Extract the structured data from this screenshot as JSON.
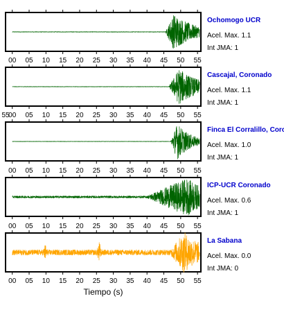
{
  "colors": {
    "station_name": "#0000cc",
    "trace_default": "#006400",
    "trace_highlight": "#ffa500"
  },
  "chart_data": {
    "type": "line",
    "xlabel": "Tiempo (s)",
    "ylabel": "",
    "xlim": [
      -2,
      56
    ],
    "x_ticks": [
      0,
      5,
      10,
      15,
      20,
      25,
      30,
      35,
      40,
      45,
      50,
      55
    ],
    "tick_labels": [
      "00",
      "05",
      "10",
      "15",
      "20",
      "25",
      "30",
      "35",
      "40",
      "45",
      "50",
      "55"
    ],
    "leading_tick_label": "55",
    "grid": false,
    "series": [
      {
        "name": "Ochomogo UCR",
        "acel_text": "Acel. Max. 1.1",
        "jma_text": "Int JMA: 1",
        "color": "#006400",
        "onset": 45.5,
        "peak_time": 48.0,
        "decay": 6.0,
        "noise_level": 0.015,
        "peak_amp": 1.0,
        "bumps": []
      },
      {
        "name": "Cascajal, Coronado",
        "acel_text": "Acel. Max. 1.1",
        "jma_text": "Int JMA: 1",
        "color": "#006400",
        "onset": 46.5,
        "peak_time": 49.5,
        "decay": 6.0,
        "noise_level": 0.012,
        "peak_amp": 1.0,
        "bumps": []
      },
      {
        "name": "Finca El Corralillo, Coronado",
        "acel_text": "Acel. Max. 1.0",
        "jma_text": "Int JMA: 1",
        "color": "#006400",
        "onset": 47.0,
        "peak_time": 49.0,
        "decay": 4.0,
        "noise_level": 0.01,
        "peak_amp": 1.0,
        "bumps": []
      },
      {
        "name": "ICP-UCR Coronado",
        "acel_text": "Acel. Max. 0.6",
        "jma_text": "Int JMA: 1",
        "color": "#006400",
        "onset": 40.0,
        "peak_time": 52.0,
        "decay": 6.0,
        "noise_level": 0.06,
        "peak_amp": 1.0,
        "bumps": []
      },
      {
        "name": "La Sabana",
        "acel_text": "Acel. Max. 0.0",
        "jma_text": "Int JMA: 0",
        "color": "#ffa500",
        "onset": 47.0,
        "peak_time": 51.0,
        "decay": 5.0,
        "noise_level": 0.15,
        "peak_amp": 1.0,
        "bumps": [
          [
            9.8,
            0.3
          ],
          [
            25.8,
            0.45
          ]
        ]
      }
    ]
  }
}
